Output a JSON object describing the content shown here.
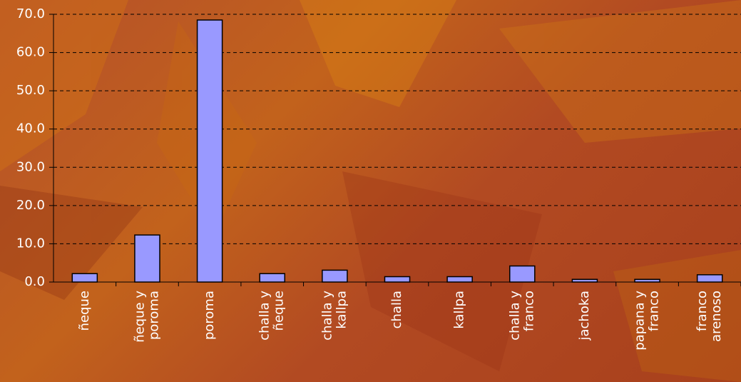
{
  "chart_data": {
    "type": "bar",
    "categories": [
      "ñeque",
      "ñeque y\nporoma",
      "poroma",
      "challa y\nñeque",
      "challa y\nkallpa",
      "challa",
      "kallpa",
      "challa y\nfranco",
      "jachoka",
      "papana y\nfranco",
      "franco\narenoso"
    ],
    "values": [
      2.2,
      12.3,
      68.5,
      2.2,
      3.1,
      1.4,
      1.4,
      4.2,
      0.7,
      0.7,
      1.9
    ],
    "color": "#9999ff",
    "ylim": [
      0,
      70
    ],
    "yticks": [
      {
        "value": 0,
        "label": "0.0"
      },
      {
        "value": 10,
        "label": "10.0"
      },
      {
        "value": 20,
        "label": "20.0"
      },
      {
        "value": 30,
        "label": "30.0"
      },
      {
        "value": 40,
        "label": "40.0"
      },
      {
        "value": 50,
        "label": "50.0"
      },
      {
        "value": 60,
        "label": "60.0"
      },
      {
        "value": 70,
        "label": "70.0"
      }
    ],
    "grid": true
  }
}
